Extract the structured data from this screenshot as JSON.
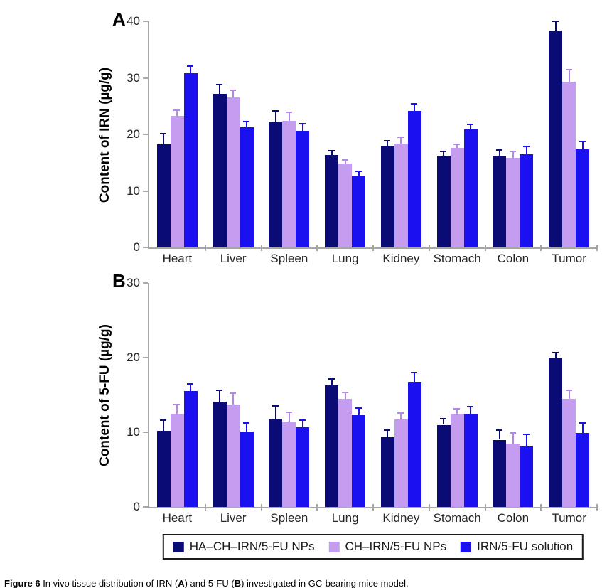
{
  "chart_data": [
    {
      "type": "bar",
      "panel_label": "A",
      "title": "",
      "xlabel": "",
      "ylabel": "Content of IRN (µg/g)",
      "categories": [
        "Heart",
        "Liver",
        "Spleen",
        "Lung",
        "Kidney",
        "Stomach",
        "Colon",
        "Tumor"
      ],
      "series": [
        {
          "name": "HA–CH–IRN/5-FU NPs",
          "color": "#0b0b75",
          "error_color": "#0b0b75",
          "values": [
            18.3,
            27.2,
            22.3,
            16.3,
            18.0,
            16.2,
            16.2,
            38.4
          ],
          "errors": [
            1.8,
            1.6,
            1.9,
            0.8,
            0.9,
            0.8,
            1.0,
            1.6
          ]
        },
        {
          "name": "CH–IRN/5-FU NPs",
          "color": "#c49df0",
          "error_color": "#b388e8",
          "values": [
            23.3,
            26.5,
            22.4,
            14.8,
            18.4,
            17.6,
            15.9,
            29.3
          ],
          "errors": [
            1.0,
            1.3,
            1.5,
            0.7,
            1.1,
            0.7,
            1.1,
            2.2
          ]
        },
        {
          "name": "IRN/5-FU solution",
          "color": "#1a10f0",
          "error_color": "#1a10f0",
          "values": [
            30.8,
            21.2,
            20.6,
            12.6,
            24.1,
            20.9,
            16.5,
            17.3
          ],
          "errors": [
            1.3,
            1.1,
            1.3,
            0.8,
            1.3,
            0.9,
            1.3,
            1.5
          ]
        }
      ],
      "ylim": [
        0,
        40
      ],
      "yticks": [
        0,
        10,
        20,
        30,
        40
      ],
      "grid": false,
      "legend_position": "shared-bottom"
    },
    {
      "type": "bar",
      "panel_label": "B",
      "title": "",
      "xlabel": "",
      "ylabel": "Content of 5-FU (µg/g)",
      "categories": [
        "Heart",
        "Liver",
        "Spleen",
        "Lung",
        "Kidney",
        "Stomach",
        "Colon",
        "Tumor"
      ],
      "series": [
        {
          "name": "HA–CH–IRN/5-FU NPs",
          "color": "#0b0b75",
          "error_color": "#0b0b75",
          "values": [
            10.2,
            14.1,
            11.8,
            16.3,
            9.3,
            11.0,
            9.0,
            20.0
          ],
          "errors": [
            1.4,
            1.5,
            1.7,
            0.8,
            1.0,
            0.8,
            1.3,
            0.7
          ]
        },
        {
          "name": "CH–IRN/5-FU NPs",
          "color": "#c49df0",
          "error_color": "#b388e8",
          "values": [
            12.5,
            13.7,
            11.4,
            14.5,
            11.7,
            12.5,
            8.5,
            14.5
          ],
          "errors": [
            1.2,
            1.5,
            1.3,
            0.8,
            0.9,
            0.6,
            1.4,
            1.1
          ]
        },
        {
          "name": "IRN/5-FU solution",
          "color": "#1a10f0",
          "error_color": "#1a10f0",
          "values": [
            15.5,
            10.1,
            10.7,
            12.4,
            16.8,
            12.5,
            8.2,
            9.9
          ],
          "errors": [
            1.0,
            1.1,
            0.9,
            0.8,
            1.2,
            0.9,
            1.5,
            1.3
          ]
        }
      ],
      "ylim": [
        0,
        30
      ],
      "yticks": [
        0,
        10,
        20,
        30
      ],
      "grid": false,
      "legend_position": "shared-bottom"
    }
  ],
  "legend": {
    "items": [
      {
        "label": "HA–CH–IRN/5-FU NPs",
        "color": "#0b0b75"
      },
      {
        "label": "CH–IRN/5-FU NPs",
        "color": "#c49df0"
      },
      {
        "label": "IRN/5-FU solution",
        "color": "#1a10f0"
      }
    ]
  },
  "caption": {
    "parts": [
      {
        "text": "Figure 6 ",
        "bold": true
      },
      {
        "text": "In vivo tissue distribution of IRN (",
        "bold": false
      },
      {
        "text": "A",
        "bold": true
      },
      {
        "text": ") and 5-FU (",
        "bold": false
      },
      {
        "text": "B",
        "bold": true
      },
      {
        "text": ") investigated in GC-bearing mice model.",
        "bold": false
      }
    ]
  },
  "colors": {
    "axis": "#a6a6a6",
    "text": "#262626"
  }
}
